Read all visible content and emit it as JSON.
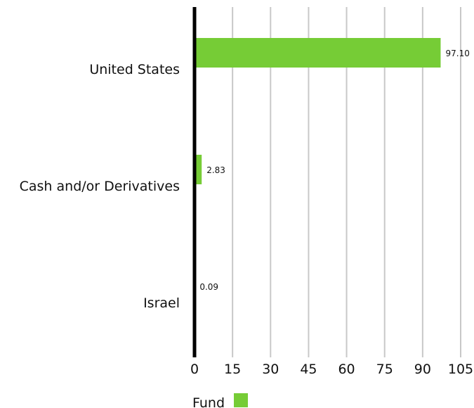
{
  "chart_data": {
    "type": "bar",
    "orientation": "horizontal",
    "categories": [
      "United States",
      "Cash and/or Derivatives",
      "Israel"
    ],
    "series": [
      {
        "name": "Fund",
        "values": [
          97.1,
          2.83,
          0.09
        ],
        "value_labels": [
          "97.10",
          "2.83",
          "0.09"
        ],
        "color": "#76cc36"
      }
    ],
    "xlim": [
      0,
      105
    ],
    "xticks": [
      0,
      15,
      30,
      45,
      60,
      75,
      90,
      105
    ],
    "xtick_labels": [
      "0",
      "15",
      "30",
      "45",
      "60",
      "75",
      "90",
      "105"
    ],
    "grid": "vertical",
    "grid_color": "#c8c8c8",
    "axis_color": "#000000",
    "legend_position": "bottom-left",
    "title": "",
    "xlabel": "",
    "ylabel": ""
  }
}
